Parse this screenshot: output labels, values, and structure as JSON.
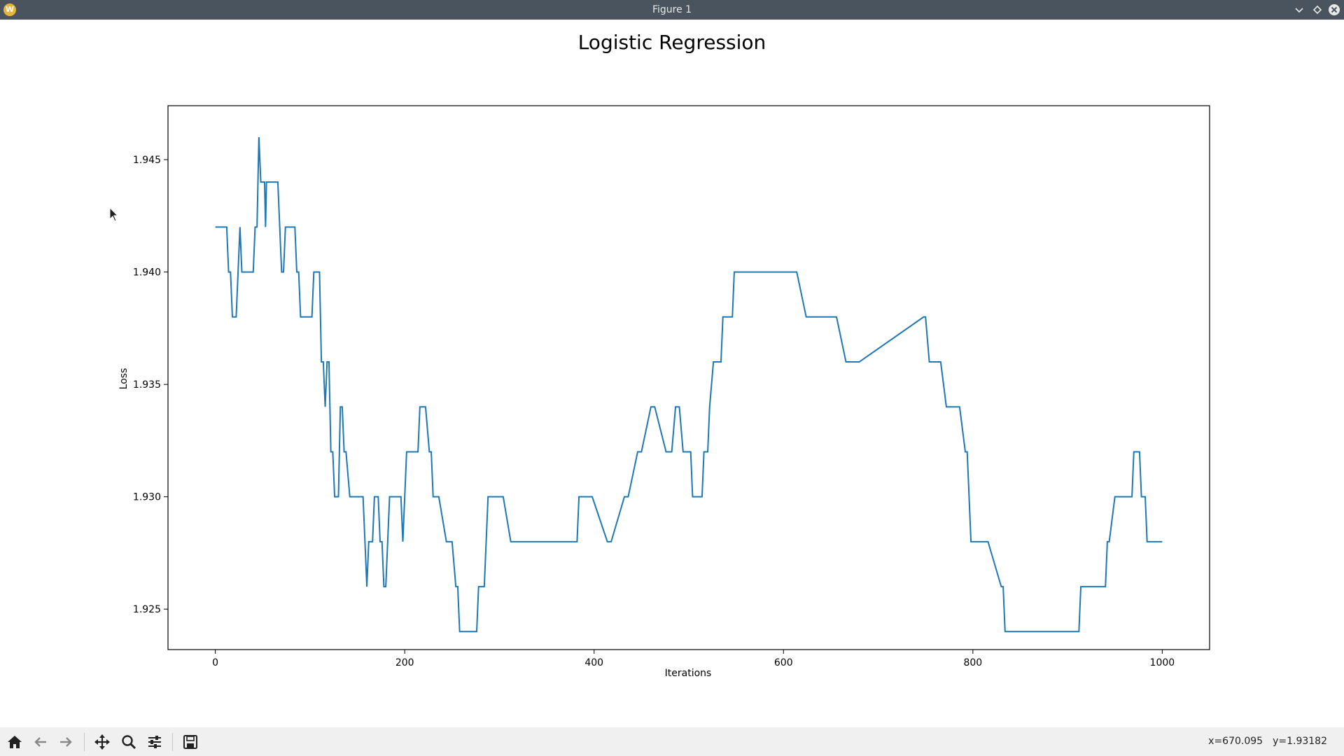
{
  "window": {
    "title": "Figure 1",
    "app_icon_letter": "W"
  },
  "chart_data": {
    "type": "line",
    "title": "Logistic Regression",
    "xlabel": "Iterations",
    "ylabel": "Loss",
    "xlim": [
      -50,
      1050
    ],
    "ylim": [
      1.9232,
      1.9474
    ],
    "xticks": [
      0,
      200,
      400,
      600,
      800,
      1000
    ],
    "xtick_labels": [
      "0",
      "200",
      "400",
      "600",
      "800",
      "1000"
    ],
    "yticks": [
      1.925,
      1.93,
      1.935,
      1.94,
      1.945
    ],
    "ytick_labels": [
      "1.925",
      "1.930",
      "1.935",
      "1.940",
      "1.945"
    ],
    "grid": false,
    "line_color": "#1f77b4",
    "series": [
      {
        "x": [
          0,
          12,
          14,
          16,
          18,
          20,
          22,
          24,
          26,
          28,
          30,
          40,
          42,
          44,
          46,
          48,
          50,
          52,
          53,
          54,
          55,
          56,
          60,
          64,
          66,
          68,
          70,
          72,
          74,
          76,
          80,
          84,
          86,
          88,
          90,
          92,
          96,
          102,
          104,
          106,
          110,
          112,
          114,
          116,
          118,
          120,
          122,
          124,
          126,
          128,
          130,
          132,
          134,
          136,
          138,
          142,
          150,
          156,
          158,
          160,
          162,
          164,
          166,
          168,
          170,
          172,
          174,
          176,
          178,
          180,
          184,
          186,
          188,
          192,
          196,
          198,
          200,
          202,
          204,
          206,
          214,
          216,
          218,
          222,
          226,
          228,
          230,
          232,
          236,
          244,
          246,
          250,
          254,
          256,
          258,
          260,
          276,
          278,
          280,
          284,
          286,
          288,
          292,
          304,
          312,
          344,
          382,
          384,
          388,
          398,
          414,
          416,
          418,
          432,
          434,
          436,
          446,
          448,
          450,
          460,
          464,
          476,
          478,
          482,
          486,
          488,
          490,
          494,
          500,
          502,
          504,
          514,
          516,
          518,
          520,
          522,
          526,
          534,
          536,
          538,
          542,
          544,
          546,
          548,
          560,
          612,
          614,
          624,
          654,
          656,
          666,
          670,
          680,
          748,
          750,
          754,
          764,
          766,
          772,
          786,
          792,
          794,
          796,
          798,
          800,
          804,
          816,
          830,
          832,
          834,
          840,
          850,
          912,
          914,
          918,
          938,
          940,
          942,
          944,
          950,
          966,
          968,
          970,
          974,
          976,
          978,
          980,
          982,
          984,
          990,
          1000
        ],
        "y": [
          1.942,
          1.942,
          1.94,
          1.94,
          1.938,
          1.938,
          1.938,
          1.94,
          1.942,
          1.94,
          1.94,
          1.94,
          1.942,
          1.942,
          1.946,
          1.944,
          1.944,
          1.944,
          1.942,
          1.944,
          1.944,
          1.944,
          1.944,
          1.944,
          1.944,
          1.942,
          1.94,
          1.94,
          1.942,
          1.942,
          1.942,
          1.942,
          1.94,
          1.94,
          1.938,
          1.938,
          1.938,
          1.938,
          1.94,
          1.94,
          1.94,
          1.936,
          1.936,
          1.934,
          1.936,
          1.936,
          1.932,
          1.932,
          1.93,
          1.93,
          1.93,
          1.934,
          1.934,
          1.932,
          1.932,
          1.93,
          1.93,
          1.93,
          1.928,
          1.926,
          1.928,
          1.928,
          1.928,
          1.93,
          1.93,
          1.93,
          1.928,
          1.928,
          1.926,
          1.926,
          1.93,
          1.93,
          1.93,
          1.93,
          1.93,
          1.928,
          1.93,
          1.932,
          1.932,
          1.932,
          1.932,
          1.934,
          1.934,
          1.934,
          1.932,
          1.932,
          1.93,
          1.93,
          1.93,
          1.928,
          1.928,
          1.928,
          1.926,
          1.926,
          1.924,
          1.924,
          1.924,
          1.926,
          1.926,
          1.926,
          1.928,
          1.93,
          1.93,
          1.93,
          1.928,
          1.928,
          1.928,
          1.93,
          1.93,
          1.93,
          1.928,
          1.928,
          1.928,
          1.93,
          1.93,
          1.93,
          1.932,
          1.932,
          1.932,
          1.934,
          1.934,
          1.932,
          1.932,
          1.932,
          1.934,
          1.934,
          1.934,
          1.932,
          1.932,
          1.932,
          1.93,
          1.93,
          1.932,
          1.932,
          1.932,
          1.934,
          1.936,
          1.936,
          1.938,
          1.938,
          1.938,
          1.938,
          1.938,
          1.94,
          1.94,
          1.94,
          1.94,
          1.938,
          1.938,
          1.938,
          1.936,
          1.936,
          1.936,
          1.938,
          1.938,
          1.936,
          1.936,
          1.936,
          1.934,
          1.934,
          1.932,
          1.932,
          1.93,
          1.928,
          1.928,
          1.928,
          1.928,
          1.926,
          1.926,
          1.924,
          1.924,
          1.924,
          1.924,
          1.926,
          1.926,
          1.926,
          1.926,
          1.928,
          1.928,
          1.93,
          1.93,
          1.93,
          1.932,
          1.932,
          1.932,
          1.93,
          1.93,
          1.93,
          1.928,
          1.928,
          1.928
        ]
      }
    ]
  },
  "toolbar": {
    "buttons": [
      "home-icon",
      "back-icon",
      "forward-icon",
      "pan-icon",
      "zoom-icon",
      "configure-subplots-icon",
      "save-icon"
    ],
    "coord_x": "x=670.095",
    "coord_y": "y=1.93182"
  }
}
